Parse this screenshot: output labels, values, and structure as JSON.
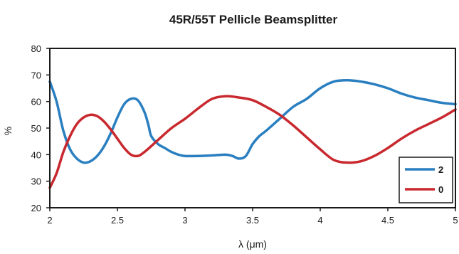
{
  "chart_data": {
    "type": "line",
    "title": "45R/55T Pellicle Beamsplitter",
    "xlabel": "λ (μm)",
    "ylabel": "%",
    "xlim": [
      2,
      5
    ],
    "ylim": [
      20,
      80
    ],
    "xticks": [
      "2",
      "2.5",
      "3",
      "3.5",
      "4",
      "4.5",
      "5"
    ],
    "yticks": [
      "20",
      "30",
      "40",
      "50",
      "60",
      "70",
      "80"
    ],
    "grid": false,
    "legend_position": "bottom-right",
    "series": [
      {
        "name": "2",
        "color": "#2a7fc1",
        "x": [
          2.0,
          2.05,
          2.1,
          2.15,
          2.2,
          2.25,
          2.3,
          2.35,
          2.4,
          2.45,
          2.5,
          2.55,
          2.6,
          2.65,
          2.7,
          2.73,
          2.75,
          2.8,
          2.85,
          2.9,
          2.95,
          3.0,
          3.1,
          3.2,
          3.3,
          3.35,
          3.4,
          3.45,
          3.5,
          3.55,
          3.6,
          3.7,
          3.8,
          3.9,
          4.0,
          4.1,
          4.2,
          4.3,
          4.4,
          4.5,
          4.6,
          4.7,
          4.8,
          4.9,
          5.0
        ],
        "values": [
          67.5,
          60,
          49,
          42,
          38.5,
          37,
          37.5,
          39.5,
          43,
          48,
          54,
          59,
          61,
          60.5,
          56,
          51,
          47,
          44,
          42.5,
          41,
          40,
          39.5,
          39.5,
          39.7,
          40,
          39.5,
          38.5,
          39.5,
          44,
          47,
          49,
          53.5,
          58,
          61,
          65,
          67.5,
          68,
          67.5,
          66.5,
          65,
          63,
          61.5,
          60.5,
          59.5,
          59
        ]
      },
      {
        "name": "0",
        "color": "#c8282e",
        "x": [
          2.0,
          2.05,
          2.1,
          2.15,
          2.2,
          2.25,
          2.3,
          2.35,
          2.4,
          2.45,
          2.5,
          2.55,
          2.6,
          2.65,
          2.7,
          2.8,
          2.9,
          3.0,
          3.1,
          3.2,
          3.3,
          3.4,
          3.5,
          3.6,
          3.7,
          3.8,
          3.9,
          4.0,
          4.1,
          4.2,
          4.3,
          4.4,
          4.5,
          4.6,
          4.7,
          4.8,
          4.9,
          5.0
        ],
        "values": [
          27.5,
          33,
          41,
          47,
          51.5,
          54,
          55,
          54.5,
          52.5,
          49.5,
          46,
          42.5,
          40,
          39.5,
          41,
          45.5,
          50,
          53.5,
          57.5,
          61,
          62,
          61.5,
          60.5,
          58,
          55,
          51,
          46.5,
          42,
          38,
          37,
          37.5,
          39.5,
          42.5,
          46,
          49,
          51.5,
          54,
          57
        ]
      }
    ]
  }
}
